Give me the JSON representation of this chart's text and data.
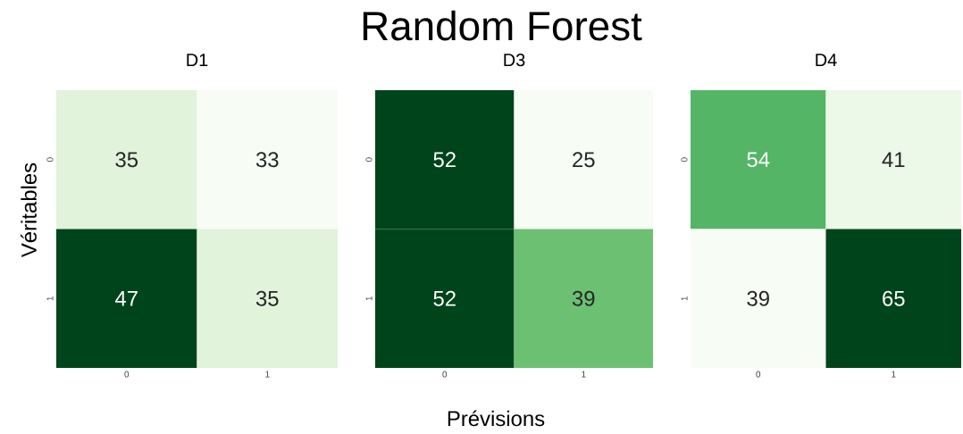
{
  "chart_data": [
    {
      "type": "heatmap",
      "title": "D1",
      "ylabel": "Véritables",
      "categories": [
        "0",
        "1"
      ],
      "y_categories": [
        "0",
        "1"
      ],
      "cells": [
        [
          35,
          33
        ],
        [
          47,
          35
        ]
      ],
      "data_labels": true
    },
    {
      "type": "heatmap",
      "title": "D3",
      "xlabel": "Prévisions",
      "annotations": [
        "Random Forest"
      ],
      "categories": [
        "0",
        "1"
      ],
      "y_categories": [
        "0",
        "1"
      ],
      "cells": [
        [
          52,
          25
        ],
        [
          52,
          39
        ]
      ],
      "data_labels": true
    },
    {
      "type": "heatmap",
      "title": "D4",
      "categories": [
        "0",
        "1"
      ],
      "y_categories": [
        "0",
        "1"
      ],
      "cells": [
        [
          54,
          41
        ],
        [
          39,
          65
        ]
      ],
      "data_labels": true
    }
  ]
}
